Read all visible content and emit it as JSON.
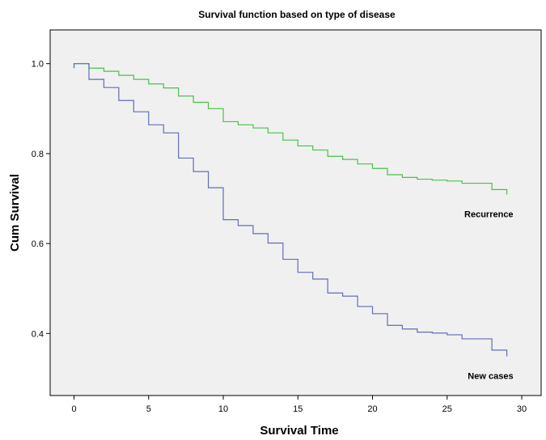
{
  "chart_data": {
    "type": "line",
    "title": "Survival function based on type of disease",
    "xlabel": "Survival Time",
    "ylabel": "Cum Survival",
    "xlim": [
      -1.6,
      31.3
    ],
    "ylim": [
      0.262,
      1.075
    ],
    "x_ticks": [
      0,
      5,
      10,
      15,
      20,
      25,
      30
    ],
    "y_ticks": [
      0.4,
      0.6,
      0.8,
      1.0
    ],
    "x_tick_labels": [
      "0",
      "5",
      "10",
      "15",
      "20",
      "25",
      "30"
    ],
    "y_tick_labels": [
      "0.4",
      "0.6",
      "0.8",
      "1.0"
    ],
    "grid": false,
    "step": true,
    "series": [
      {
        "name": "Recurrence",
        "color": "#4bbf4b",
        "start": 0.99,
        "x": [
          0,
          1,
          2,
          3,
          4,
          5,
          6,
          7,
          8,
          9,
          10,
          11,
          12,
          13,
          14,
          15,
          16,
          17,
          18,
          19,
          20,
          21,
          22,
          23,
          24,
          25,
          26,
          27,
          28,
          29
        ],
        "values": [
          1.0,
          0.99,
          0.983,
          0.974,
          0.965,
          0.955,
          0.946,
          0.928,
          0.914,
          0.9,
          0.871,
          0.864,
          0.857,
          0.846,
          0.83,
          0.817,
          0.808,
          0.794,
          0.787,
          0.777,
          0.767,
          0.753,
          0.747,
          0.743,
          0.741,
          0.739,
          0.734,
          0.734,
          0.72,
          0.709
        ]
      },
      {
        "name": "New cases",
        "color": "#5f6eb8",
        "start": 0.99,
        "x": [
          0,
          1,
          2,
          3,
          4,
          5,
          6,
          7,
          8,
          9,
          10,
          11,
          12,
          13,
          14,
          15,
          16,
          17,
          18,
          19,
          20,
          21,
          22,
          23,
          24,
          25,
          26,
          27,
          28,
          29
        ],
        "values": [
          1.0,
          0.965,
          0.947,
          0.918,
          0.893,
          0.864,
          0.846,
          0.79,
          0.76,
          0.724,
          0.653,
          0.64,
          0.622,
          0.601,
          0.565,
          0.536,
          0.521,
          0.49,
          0.483,
          0.46,
          0.444,
          0.418,
          0.41,
          0.403,
          0.401,
          0.397,
          0.388,
          0.388,
          0.363,
          0.349
        ]
      }
    ]
  }
}
